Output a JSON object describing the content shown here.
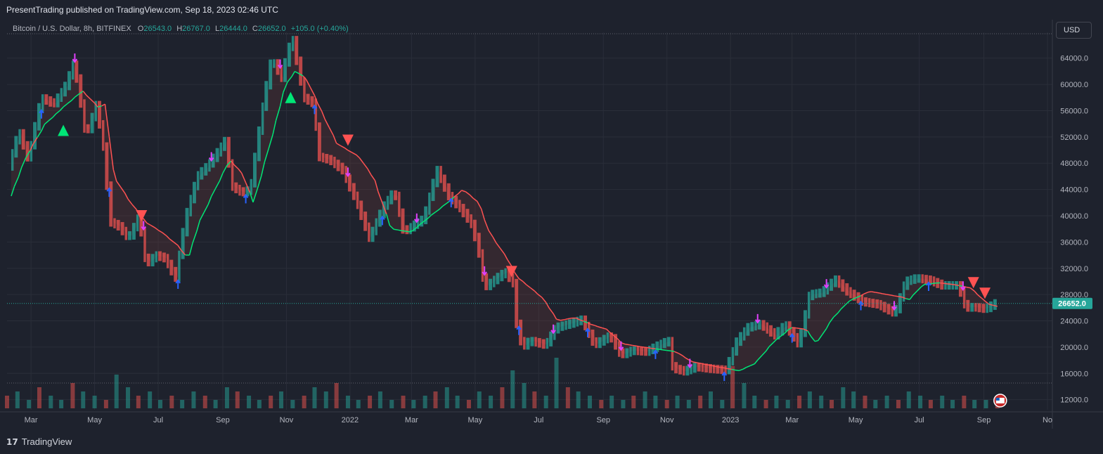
{
  "header": {
    "publisher_line": "PresentTrading published on TradingView.com, Sep 18, 2023 02:46 UTC"
  },
  "legend": {
    "symbol": "Bitcoin / U.S. Dollar, 8h, BITFINEX",
    "open_label": "O",
    "open": "26543.0",
    "high_label": "H",
    "high": "26767.0",
    "low_label": "L",
    "low": "26444.0",
    "close_label": "C",
    "close": "26652.0",
    "change": "+105.0 (+0.40%)"
  },
  "currency_button": "USD",
  "footer": {
    "brand": "TradingView",
    "logo_icon": "tradingview-logo-icon"
  },
  "colors": {
    "background": "#1e222d",
    "up": "#26a69a",
    "down": "#ef5350",
    "trail_up": "#00e676",
    "trail_down": "#ff5252",
    "buy_signal": "#2962ff",
    "sell_signal": "#e040fb",
    "price_label_bg": "#26a69a",
    "grid": "#2a2e39"
  },
  "chart_data": {
    "type": "line",
    "title": "Bitcoin / U.S. Dollar, 8h, BITFINEX",
    "xlabel": "",
    "ylabel": "",
    "grid": true,
    "ylim": [
      11000,
      67500
    ],
    "y_ticks": [
      "64000.0",
      "60000.0",
      "56000.0",
      "52000.0",
      "48000.0",
      "44000.0",
      "40000.0",
      "36000.0",
      "32000.0",
      "28000.0",
      "24000.0",
      "20000.0",
      "16000.0",
      "12000.0"
    ],
    "x_ticks": [
      {
        "label": "Mar",
        "date": "2021-03-01"
      },
      {
        "label": "May",
        "date": "2021-05-01"
      },
      {
        "label": "Jul",
        "date": "2021-07-01"
      },
      {
        "label": "Sep",
        "date": "2021-09-01"
      },
      {
        "label": "Nov",
        "date": "2021-11-01"
      },
      {
        "label": "2022",
        "date": "2022-01-01"
      },
      {
        "label": "Mar",
        "date": "2022-03-01"
      },
      {
        "label": "May",
        "date": "2022-05-01"
      },
      {
        "label": "Jul",
        "date": "2022-07-01"
      },
      {
        "label": "Sep",
        "date": "2022-09-01"
      },
      {
        "label": "Nov",
        "date": "2022-11-01"
      },
      {
        "label": "2023",
        "date": "2023-01-01"
      },
      {
        "label": "Mar",
        "date": "2023-03-01"
      },
      {
        "label": "May",
        "date": "2023-05-01"
      },
      {
        "label": "Jul",
        "date": "2023-07-01"
      },
      {
        "label": "Sep",
        "date": "2023-09-01"
      },
      {
        "label": "No",
        "date": "2023-11-01"
      }
    ],
    "last_price": 26652.0,
    "last_price_label": "26652.0",
    "series": [
      {
        "kind": "price",
        "x": [
          "2021-02-10",
          "2021-02-20",
          "2021-03-01",
          "2021-03-13",
          "2021-03-25",
          "2021-04-05",
          "2021-04-14",
          "2021-04-25",
          "2021-05-05",
          "2021-05-12",
          "2021-05-19",
          "2021-05-26",
          "2021-06-05",
          "2021-06-15",
          "2021-06-22",
          "2021-07-01",
          "2021-07-10",
          "2021-07-20",
          "2021-07-30",
          "2021-08-10",
          "2021-08-22",
          "2021-09-06",
          "2021-09-12",
          "2021-09-22",
          "2021-09-30",
          "2021-10-10",
          "2021-10-20",
          "2021-10-30",
          "2021-11-09",
          "2021-11-20",
          "2021-11-30",
          "2021-12-04",
          "2021-12-15",
          "2021-12-27",
          "2022-01-10",
          "2022-01-22",
          "2022-02-05",
          "2022-02-15",
          "2022-02-24",
          "2022-03-05",
          "2022-03-15",
          "2022-03-28",
          "2022-04-08",
          "2022-04-20",
          "2022-05-01",
          "2022-05-09",
          "2022-05-12",
          "2022-05-20",
          "2022-06-01",
          "2022-06-10",
          "2022-06-13",
          "2022-06-18",
          "2022-06-25",
          "2022-07-10",
          "2022-07-20",
          "2022-08-01",
          "2022-08-14",
          "2022-08-26",
          "2022-09-10",
          "2022-09-20",
          "2022-10-01",
          "2022-10-15",
          "2022-10-25",
          "2022-11-05",
          "2022-11-09",
          "2022-11-20",
          "2022-12-01",
          "2022-12-15",
          "2022-12-30",
          "2023-01-10",
          "2023-01-20",
          "2023-02-01",
          "2023-02-15",
          "2023-02-25",
          "2023-03-10",
          "2023-03-20",
          "2023-04-01",
          "2023-04-14",
          "2023-04-25",
          "2023-05-10",
          "2023-05-25",
          "2023-06-10",
          "2023-06-20",
          "2023-07-01",
          "2023-07-13",
          "2023-07-25",
          "2023-08-10",
          "2023-08-17",
          "2023-08-25",
          "2023-09-05",
          "2023-09-14"
        ],
        "y": [
          47500,
          53000,
          48500,
          58000,
          57000,
          59500,
          63500,
          52000,
          57000,
          50500,
          39000,
          38500,
          36500,
          40000,
          32500,
          34000,
          33500,
          30500,
          40000,
          46000,
          48000,
          51500,
          44500,
          43500,
          44000,
          55000,
          64000,
          61000,
          67500,
          58000,
          57000,
          49000,
          48500,
          47000,
          42000,
          36500,
          41500,
          43800,
          37500,
          38500,
          39500,
          47000,
          43000,
          41000,
          38500,
          33000,
          29000,
          30000,
          31500,
          29500,
          22500,
          20000,
          21000,
          20300,
          23000,
          23500,
          24200,
          20300,
          21800,
          18800,
          19500,
          19300,
          20200,
          21000,
          16800,
          16300,
          17000,
          16700,
          16500,
          21000,
          23000,
          23500,
          21800,
          23500,
          20300,
          28000,
          28300,
          30300,
          28500,
          26900,
          26500,
          25100,
          30000,
          30500,
          30200,
          29400,
          29400,
          26000,
          26100,
          25800,
          26652
        ]
      },
      {
        "kind": "trailing_stop",
        "x": [
          "2021-02-10",
          "2021-02-25",
          "2021-03-15",
          "2021-04-05",
          "2021-04-20",
          "2021-05-05",
          "2021-05-12",
          "2021-05-20",
          "2021-06-05",
          "2021-06-20",
          "2021-07-05",
          "2021-07-20",
          "2021-07-30",
          "2021-08-10",
          "2021-08-25",
          "2021-09-08",
          "2021-09-20",
          "2021-10-01",
          "2021-10-15",
          "2021-11-01",
          "2021-11-10",
          "2021-11-20",
          "2021-12-05",
          "2021-12-20",
          "2022-01-10",
          "2022-01-25",
          "2022-02-10",
          "2022-03-01",
          "2022-03-20",
          "2022-04-05",
          "2022-04-20",
          "2022-05-05",
          "2022-05-15",
          "2022-06-01",
          "2022-06-12",
          "2022-06-20",
          "2022-07-05",
          "2022-07-20",
          "2022-08-05",
          "2022-08-20",
          "2022-09-05",
          "2022-09-20",
          "2022-10-10",
          "2022-11-01",
          "2022-11-10",
          "2022-11-25",
          "2022-12-20",
          "2023-01-10",
          "2023-01-25",
          "2023-02-10",
          "2023-03-01",
          "2023-03-15",
          "2023-03-25",
          "2023-04-10",
          "2023-04-25",
          "2023-05-15",
          "2023-06-01",
          "2023-06-15",
          "2023-06-22",
          "2023-07-05",
          "2023-07-20",
          "2023-08-05",
          "2023-08-20",
          "2023-09-05",
          "2023-09-14"
        ],
        "y": [
          43000,
          49000,
          54000,
          57000,
          59000,
          56500,
          57000,
          46000,
          42000,
          39000,
          37500,
          35500,
          33500,
          39000,
          44000,
          48500,
          46500,
          42000,
          50000,
          60000,
          62000,
          61000,
          56000,
          51000,
          49000,
          45500,
          38000,
          37500,
          40000,
          42000,
          44000,
          42000,
          37500,
          33500,
          30500,
          29500,
          27500,
          24000,
          24500,
          23500,
          22700,
          20500,
          20000,
          19500,
          19300,
          17800,
          17000,
          16400,
          17500,
          20500,
          23000,
          22700,
          20500,
          24500,
          27000,
          28500,
          28000,
          27600,
          27200,
          29500,
          29800,
          29500,
          29000,
          26600,
          26200
        ]
      },
      {
        "kind": "volume",
        "values": [
          3,
          4,
          2,
          5,
          3,
          2,
          6,
          4,
          3,
          2,
          8,
          5,
          3,
          4,
          2,
          3,
          2,
          4,
          3,
          2,
          5,
          4,
          3,
          2,
          3,
          4,
          2,
          3,
          5,
          4,
          6,
          3,
          2,
          3,
          4,
          2,
          3,
          2,
          3,
          4,
          5,
          3,
          2,
          4,
          3,
          5,
          9,
          6,
          4,
          3,
          12,
          5,
          4,
          3,
          2,
          3,
          2,
          3,
          4,
          3,
          2,
          3,
          2,
          3,
          4,
          2,
          10,
          6,
          3,
          2,
          3,
          2,
          3,
          4,
          3,
          2,
          5,
          4,
          3,
          2,
          3,
          2,
          4,
          3,
          2,
          3,
          2,
          3,
          2,
          2,
          2
        ]
      }
    ],
    "signals": [
      {
        "type": "big-buy",
        "date": "2021-04-01",
        "price": 53000
      },
      {
        "type": "big-buy",
        "date": "2021-11-05",
        "price": 58000
      },
      {
        "type": "big-sell",
        "date": "2021-06-15",
        "price": 40000
      },
      {
        "type": "big-sell",
        "date": "2021-12-30",
        "price": 51500
      },
      {
        "type": "big-sell",
        "date": "2022-06-05",
        "price": 31500
      },
      {
        "type": "big-sell",
        "date": "2023-08-22",
        "price": 29800
      },
      {
        "type": "big-sell",
        "date": "2023-09-02",
        "price": 28200
      }
    ]
  }
}
